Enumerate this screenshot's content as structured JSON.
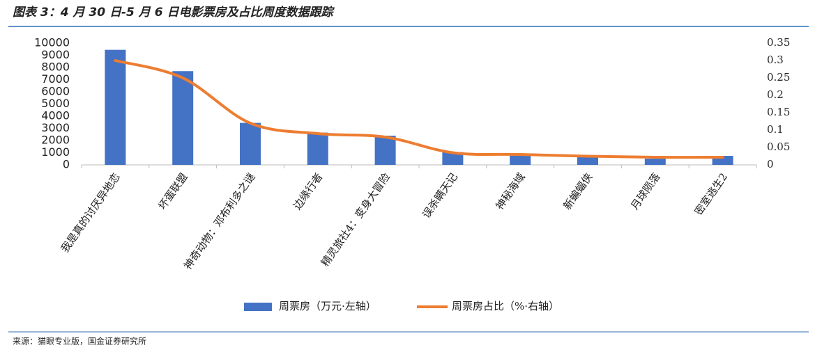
{
  "chart_data": {
    "type": "combo",
    "title": "图表 3：4 月 30 日-5 月 6 日电影票房及占比周度数据跟踪",
    "categories": [
      "我是真的讨厌异地恋",
      "坏蛋联盟",
      "神奇动物：邓布利多之谜",
      "边缘行者",
      "精灵旅社4：变身大冒险",
      "误杀瞒天记",
      "神秘海域",
      "新蝙蝠侠",
      "月球陨落",
      "密室逃生2"
    ],
    "series": [
      {
        "name": "周票房（万元·左轴）",
        "type": "bar",
        "color": "#4472c4",
        "values": [
          9450,
          7700,
          3450,
          2650,
          2400,
          1050,
          850,
          630,
          510,
          740
        ]
      },
      {
        "name": "周票房占比（%·右轴）",
        "type": "line",
        "axis": "y2",
        "color": "#ed7d31",
        "values": [
          0.3,
          0.25,
          0.12,
          0.09,
          0.08,
          0.035,
          0.03,
          0.025,
          0.022,
          0.022
        ]
      }
    ],
    "ylim": [
      0,
      10000
    ],
    "yticks": [
      0,
      1000,
      2000,
      3000,
      4000,
      5000,
      6000,
      7000,
      8000,
      9000,
      10000
    ],
    "y2lim": [
      0,
      0.35
    ],
    "y2ticks": [
      0,
      0.05,
      0.1,
      0.15,
      0.2,
      0.25,
      0.3,
      0.35
    ],
    "grid": false,
    "legend": "bottom",
    "source": "来源：猫眼专业版，国金证券研究所"
  }
}
